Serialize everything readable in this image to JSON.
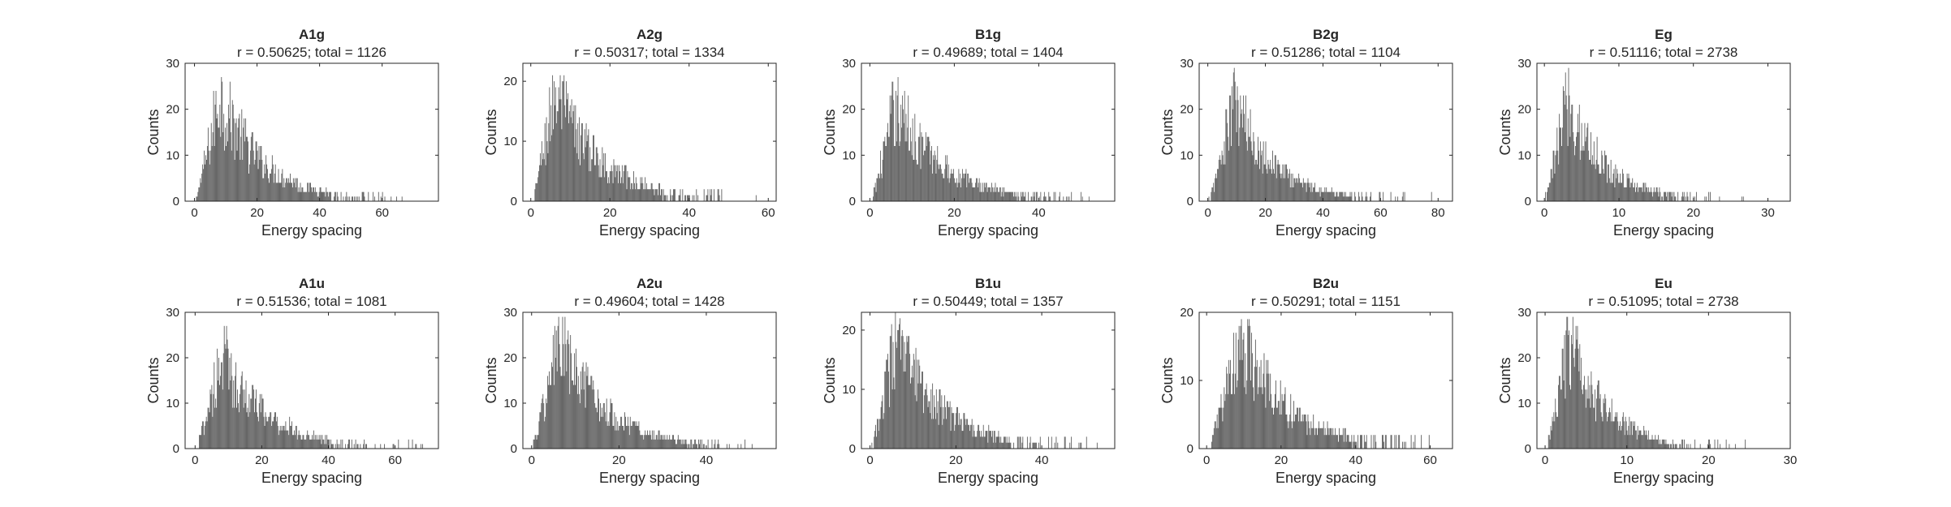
{
  "figure": {
    "bar_color": "#606060",
    "axis_color": "#262626"
  },
  "chart_data": [
    {
      "type": "bar",
      "title": "A1g",
      "subtitle": "r = 0.50625; total = 1126",
      "xlabel": "Energy spacing",
      "ylabel": "Counts",
      "xlim": [
        -3,
        78
      ],
      "ylim": [
        0,
        30
      ],
      "xticks": [
        0,
        20,
        40,
        60
      ],
      "yticks": [
        0,
        10,
        20,
        30
      ],
      "n": 1126,
      "peak_x": 8,
      "peak_y": 28,
      "decay": 0.072,
      "x_max_data": 75
    },
    {
      "type": "bar",
      "title": "A2g",
      "subtitle": "r = 0.50317; total = 1334",
      "xlabel": "Energy spacing",
      "ylabel": "Counts",
      "xlim": [
        -2,
        62
      ],
      "ylim": [
        0,
        23
      ],
      "xticks": [
        0,
        20,
        40,
        60
      ],
      "yticks": [
        0,
        10,
        20
      ],
      "n": 1334,
      "peak_x": 6,
      "peak_y": 22,
      "decay": 0.085,
      "x_max_data": 58
    },
    {
      "type": "bar",
      "title": "B1g",
      "subtitle": "r = 0.49689; total = 1404",
      "xlabel": "Energy spacing",
      "ylabel": "Counts",
      "xlim": [
        -2,
        58
      ],
      "ylim": [
        0,
        30
      ],
      "xticks": [
        0,
        20,
        40
      ],
      "yticks": [
        0,
        10,
        20,
        30
      ],
      "n": 1404,
      "peak_x": 6,
      "peak_y": 26,
      "decay": 0.09,
      "x_max_data": 52
    },
    {
      "type": "bar",
      "title": "B2g",
      "subtitle": "r = 0.51286; total = 1104",
      "xlabel": "Energy spacing",
      "ylabel": "Counts",
      "xlim": [
        -3,
        85
      ],
      "ylim": [
        0,
        30
      ],
      "xticks": [
        0,
        20,
        40,
        60,
        80
      ],
      "yticks": [
        0,
        10,
        20,
        30
      ],
      "n": 1104,
      "peak_x": 9,
      "peak_y": 26,
      "decay": 0.07,
      "x_max_data": 80
    },
    {
      "type": "bar",
      "title": "Eg",
      "subtitle": "r = 0.51116; total = 2738",
      "xlabel": "Energy spacing",
      "ylabel": "Counts",
      "xlim": [
        -1,
        33
      ],
      "ylim": [
        0,
        30
      ],
      "xticks": [
        0,
        10,
        20,
        30
      ],
      "yticks": [
        0,
        10,
        20,
        30
      ],
      "n": 2738,
      "peak_x": 3,
      "peak_y": 27,
      "decay": 0.2,
      "x_max_data": 31
    },
    {
      "type": "bar",
      "title": "A1u",
      "subtitle": "r = 0.51536; total = 1081",
      "xlabel": "Energy spacing",
      "ylabel": "Counts",
      "xlim": [
        -3,
        73
      ],
      "ylim": [
        0,
        30
      ],
      "xticks": [
        0,
        20,
        40,
        60
      ],
      "yticks": [
        0,
        10,
        20,
        30
      ],
      "n": 1081,
      "peak_x": 8,
      "peak_y": 25,
      "decay": 0.075,
      "x_max_data": 70
    },
    {
      "type": "bar",
      "title": "A2u",
      "subtitle": "r = 0.49604; total = 1428",
      "xlabel": "Energy spacing",
      "ylabel": "Counts",
      "xlim": [
        -2,
        56
      ],
      "ylim": [
        0,
        30
      ],
      "xticks": [
        0,
        20,
        40
      ],
      "yticks": [
        0,
        10,
        20,
        30
      ],
      "n": 1428,
      "peak_x": 6,
      "peak_y": 28,
      "decay": 0.09,
      "x_max_data": 54
    },
    {
      "type": "bar",
      "title": "B1u",
      "subtitle": "r = 0.50449; total = 1357",
      "xlabel": "Energy spacing",
      "ylabel": "Counts",
      "xlim": [
        -2,
        57
      ],
      "ylim": [
        0,
        23
      ],
      "xticks": [
        0,
        20,
        40
      ],
      "yticks": [
        0,
        10,
        20
      ],
      "n": 1357,
      "peak_x": 6,
      "peak_y": 22,
      "decay": 0.09,
      "x_max_data": 53
    },
    {
      "type": "bar",
      "title": "B2u",
      "subtitle": "r = 0.50291; total = 1151",
      "xlabel": "Energy spacing",
      "ylabel": "Counts",
      "xlim": [
        -2,
        66
      ],
      "ylim": [
        0,
        20
      ],
      "xticks": [
        0,
        20,
        40,
        60
      ],
      "yticks": [
        0,
        10,
        20
      ],
      "n": 1151,
      "peak_x": 9,
      "peak_y": 19,
      "decay": 0.075,
      "x_max_data": 63
    },
    {
      "type": "bar",
      "title": "Eu",
      "subtitle": "r = 0.51095; total = 2738",
      "xlabel": "Energy spacing",
      "ylabel": "Counts",
      "xlim": [
        -1,
        30
      ],
      "ylim": [
        0,
        30
      ],
      "xticks": [
        0,
        10,
        20,
        30
      ],
      "yticks": [
        0,
        10,
        20,
        30
      ],
      "n": 2738,
      "peak_x": 3,
      "peak_y": 29,
      "decay": 0.22,
      "x_max_data": 28
    }
  ]
}
